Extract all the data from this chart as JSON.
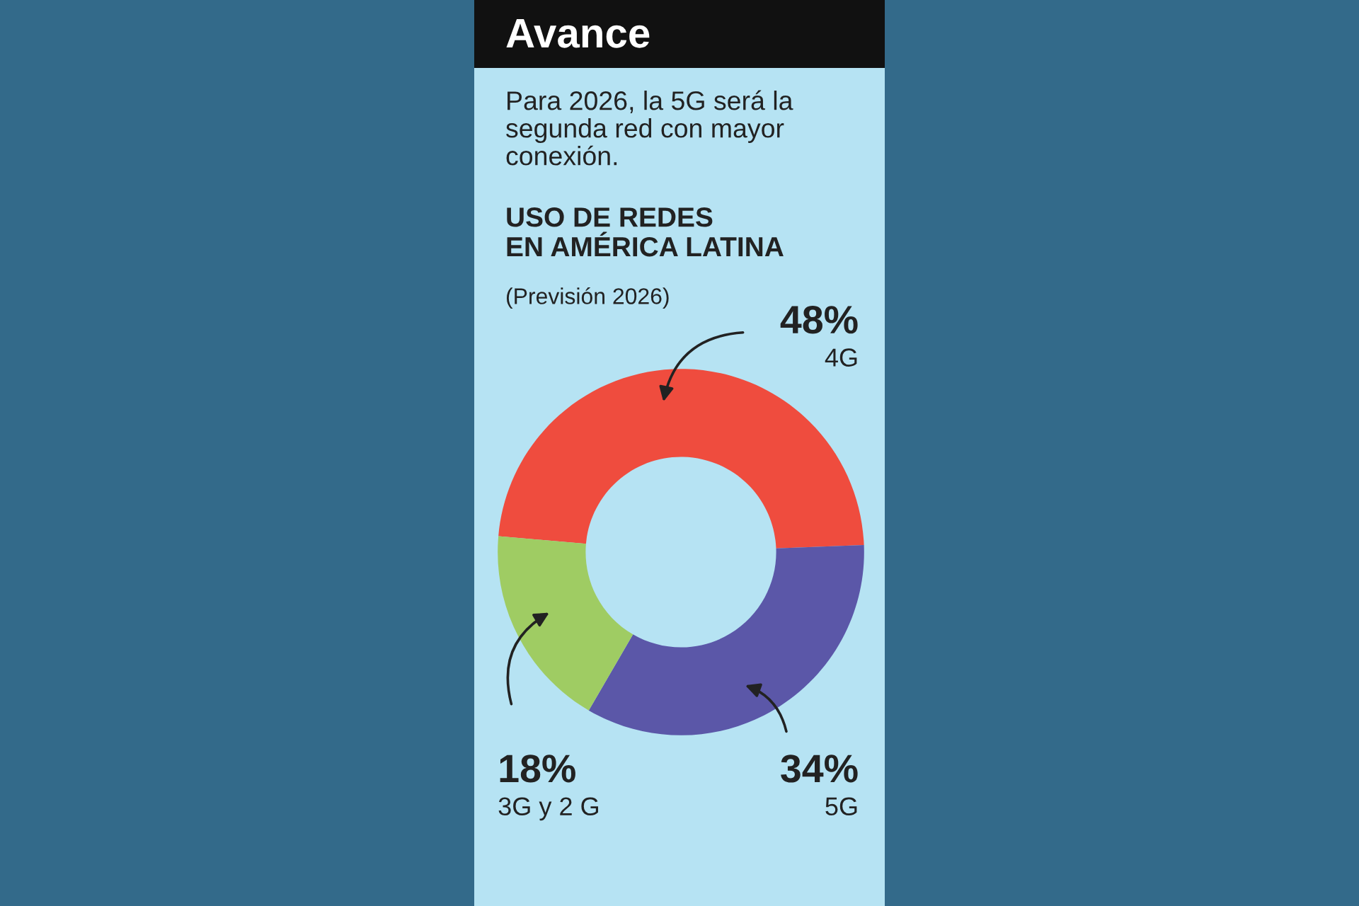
{
  "chart_data": {
    "type": "donut",
    "title": "Avance",
    "subtitle": "Para 2026, la 5G será la\nsegunda red con mayor\nconexión.",
    "annotations": [
      "USO DE REDES\nEN AMÉRICA LATINA",
      "(Previsión 2026)"
    ],
    "categories": [
      "4G",
      "5G",
      "3G y 2 G"
    ],
    "values": [
      48,
      34,
      18
    ],
    "colors": [
      "#ef4c3e",
      "#5b57a8",
      "#9fcc63"
    ],
    "value_labels": [
      "48%",
      "34%",
      "18%"
    ]
  }
}
